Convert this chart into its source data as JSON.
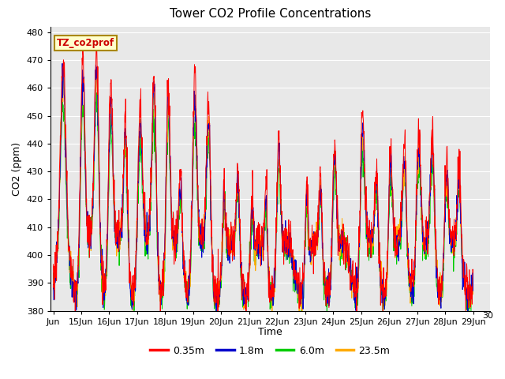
{
  "title": "Tower CO2 Profile Concentrations",
  "xlabel": "Time",
  "ylabel": "CO2 (ppm)",
  "ylim": [
    380,
    482
  ],
  "bg_color": "#e8e8e8",
  "legend_label": "TZ_co2prof",
  "series_labels": [
    "0.35m",
    "1.8m",
    "6.0m",
    "23.5m"
  ],
  "series_colors": [
    "#ff0000",
    "#0000cc",
    "#00cc00",
    "#ffaa00"
  ],
  "x_tick_positions": [
    0,
    1,
    2,
    3,
    4,
    5,
    6,
    7,
    8,
    9,
    10,
    11,
    12,
    13,
    14,
    15
  ],
  "x_tick_labels": [
    "Jun",
    "15Jun",
    "16Jun",
    "17Jun",
    "18Jun",
    "19Jun",
    "20Jun",
    "21Jun",
    "22Jun",
    "23Jun",
    "24Jun",
    "25Jun",
    "26Jun",
    "27Jun",
    "28Jun",
    "29Jun"
  ]
}
